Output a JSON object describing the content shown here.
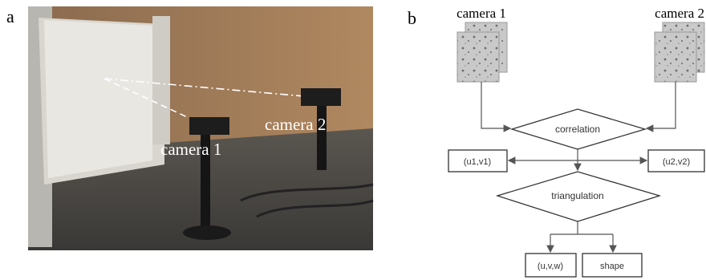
{
  "panel_a": {
    "label": "a",
    "annotations": [
      "camera 1",
      "camera 2"
    ]
  },
  "panel_b": {
    "label": "b",
    "inputs": [
      "camera 1",
      "camera 2"
    ],
    "nodes": [
      "correlation",
      "(u1,v1)",
      "(u2,v2)",
      "triangulation",
      "(u,v,w)",
      "shape"
    ]
  }
}
